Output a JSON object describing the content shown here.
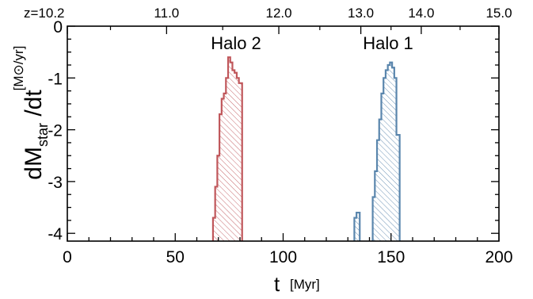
{
  "chart_data": {
    "type": "histogram",
    "x_axis": {
      "label": "t",
      "unit": "[Myr]",
      "range": [
        0,
        200
      ],
      "major_ticks": [
        0,
        50,
        100,
        150,
        200
      ],
      "tick_labels": [
        "0",
        "50",
        "100",
        "150",
        "200"
      ],
      "minor_step": 10
    },
    "top_axis": {
      "tick_labels": [
        "z=10.2",
        "11.0",
        "12.0",
        "13.0",
        "14.0",
        "15.0"
      ],
      "tick_positions_t": [
        0,
        46,
        98,
        136,
        164,
        200
      ]
    },
    "y_axis": {
      "label_main": "dM",
      "label_sub": "star",
      "label_tail": " /dt",
      "unit": "[M⊙/yr]",
      "range": [
        -4.15,
        0
      ],
      "major_ticks": [
        0,
        -1,
        -2,
        -3,
        -4
      ],
      "tick_labels": [
        "0",
        "-1",
        "-2",
        "-3",
        "-4"
      ],
      "minor_step": 0.25
    },
    "series": [
      {
        "name": "Halo 2",
        "color": "#c0575b",
        "hatch": "diagonal",
        "bins": [
          {
            "start": 67.5,
            "end": 68.5,
            "value": -3.7
          },
          {
            "start": 68.5,
            "end": 69.5,
            "value": -3.1
          },
          {
            "start": 69.5,
            "end": 70.5,
            "value": -2.5
          },
          {
            "start": 70.5,
            "end": 71.5,
            "value": -1.7
          },
          {
            "start": 71.5,
            "end": 72.5,
            "value": -1.4
          },
          {
            "start": 72.5,
            "end": 73.5,
            "value": -1.3
          },
          {
            "start": 73.5,
            "end": 74.5,
            "value": -1.0
          },
          {
            "start": 74.5,
            "end": 75.5,
            "value": -0.6
          },
          {
            "start": 75.5,
            "end": 76.5,
            "value": -0.7
          },
          {
            "start": 76.5,
            "end": 77.5,
            "value": -0.85
          },
          {
            "start": 77.5,
            "end": 78.5,
            "value": -0.9
          },
          {
            "start": 78.5,
            "end": 79.5,
            "value": -1.0
          },
          {
            "start": 79.5,
            "end": 81.0,
            "value": -1.1
          }
        ]
      },
      {
        "name": "Halo 1",
        "color": "#5a86ad",
        "hatch": "diagonal",
        "bins": [
          {
            "start": 133.0,
            "end": 134.0,
            "value": -3.7
          },
          {
            "start": 134.0,
            "end": 135.5,
            "value": -3.6
          },
          {
            "start": 141.5,
            "end": 142.5,
            "value": -3.3
          },
          {
            "start": 142.5,
            "end": 143.5,
            "value": -2.8
          },
          {
            "start": 143.5,
            "end": 144.5,
            "value": -2.2
          },
          {
            "start": 144.5,
            "end": 145.5,
            "value": -1.8
          },
          {
            "start": 145.5,
            "end": 146.5,
            "value": -1.3
          },
          {
            "start": 146.5,
            "end": 147.5,
            "value": -1.0
          },
          {
            "start": 147.5,
            "end": 148.5,
            "value": -0.85
          },
          {
            "start": 148.5,
            "end": 149.5,
            "value": -0.75
          },
          {
            "start": 149.5,
            "end": 150.5,
            "value": -0.7
          },
          {
            "start": 150.5,
            "end": 151.5,
            "value": -0.8
          },
          {
            "start": 151.5,
            "end": 152.5,
            "value": -1.0
          },
          {
            "start": 152.5,
            "end": 154.0,
            "value": -2.1
          }
        ]
      }
    ],
    "annotations": [
      {
        "text": "Halo 2",
        "color": "#c0575b",
        "x": 78
      },
      {
        "text": "Halo 1",
        "color": "#5a86ad",
        "x": 145
      }
    ],
    "grid": false
  }
}
